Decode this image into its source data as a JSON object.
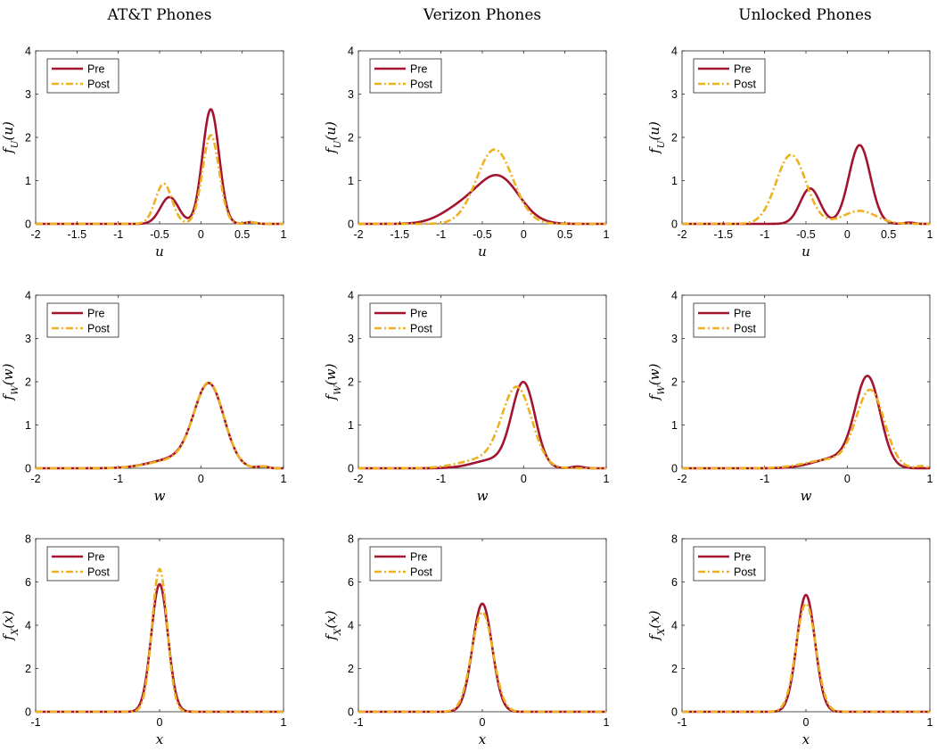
{
  "figure": {
    "column_titles": [
      "AT&T Phones",
      "Verizon Phones",
      "Unlocked Phones"
    ]
  },
  "colors": {
    "pre": "#A2142F",
    "post": "#EDB120"
  },
  "chart_data": [
    {
      "type": "line",
      "row": 0,
      "col": 0,
      "column_title": "AT&T Phones",
      "xlabel": "u",
      "ylabel": "f_U(u)",
      "xlim": [
        -2,
        1
      ],
      "ylim": [
        0,
        4
      ],
      "xticks": [
        "-2",
        "-1.5",
        "-1",
        "-0.5",
        "0",
        "0.5",
        "1"
      ],
      "yticks": [
        "0",
        "1",
        "2",
        "3",
        "4"
      ],
      "legend": {
        "position": "top-left",
        "entries": [
          "Pre",
          "Post"
        ]
      },
      "series": [
        {
          "name": "Pre",
          "style": "solid",
          "components": [
            [
              0.12,
              0.1,
              2.65
            ],
            [
              -0.38,
              0.11,
              0.62
            ]
          ],
          "bump": [
            0.6,
            0.06,
            0.04
          ]
        },
        {
          "name": "Post",
          "style": "dash-dot",
          "components": [
            [
              0.12,
              0.1,
              2.05
            ],
            [
              -0.45,
              0.1,
              0.93
            ]
          ],
          "bump": [
            0.6,
            0.06,
            0.04
          ]
        }
      ]
    },
    {
      "type": "line",
      "row": 0,
      "col": 1,
      "column_title": "Verizon Phones",
      "xlabel": "u",
      "ylabel": "f_U(u)",
      "xlim": [
        -2,
        1
      ],
      "ylim": [
        0,
        4
      ],
      "xticks": [
        "-2",
        "-1.5",
        "-1",
        "-0.5",
        "0",
        "0.5",
        "1"
      ],
      "yticks": [
        "0",
        "1",
        "2",
        "3",
        "4"
      ],
      "legend": {
        "position": "top-left",
        "entries": [
          "Pre",
          "Post"
        ]
      },
      "series": [
        {
          "name": "Pre",
          "style": "solid",
          "components": [
            [
              -0.3,
              0.25,
              1.05
            ],
            [
              -0.75,
              0.25,
              0.35
            ]
          ]
        },
        {
          "name": "Post",
          "style": "dash-dot",
          "components": [
            [
              -0.35,
              0.22,
              1.72
            ]
          ]
        }
      ]
    },
    {
      "type": "line",
      "row": 0,
      "col": 2,
      "column_title": "Unlocked Phones",
      "xlabel": "u",
      "ylabel": "f_U(u)",
      "xlim": [
        -2,
        1
      ],
      "ylim": [
        0,
        4
      ],
      "xticks": [
        "-2",
        "-1.5",
        "-1",
        "-0.5",
        "0",
        "0.5",
        "1"
      ],
      "yticks": [
        "0",
        "1",
        "2",
        "3",
        "4"
      ],
      "legend": {
        "position": "top-left",
        "entries": [
          "Pre",
          "Post"
        ]
      },
      "series": [
        {
          "name": "Pre",
          "style": "solid",
          "components": [
            [
              0.15,
              0.13,
              1.82
            ],
            [
              -0.45,
              0.12,
              0.82
            ]
          ],
          "bump": [
            0.75,
            0.06,
            0.03
          ]
        },
        {
          "name": "Post",
          "style": "dash-dot",
          "components": [
            [
              -0.68,
              0.18,
              1.6
            ],
            [
              0.15,
              0.2,
              0.3
            ]
          ]
        }
      ]
    },
    {
      "type": "line",
      "row": 1,
      "col": 0,
      "xlabel": "w",
      "ylabel": "f_W(w)",
      "xlim": [
        -2,
        1
      ],
      "ylim": [
        0,
        4
      ],
      "xticks": [
        "-2",
        "-1",
        "0",
        "1"
      ],
      "yticks": [
        "0",
        "1",
        "2",
        "3",
        "4"
      ],
      "legend": {
        "position": "top-left",
        "entries": [
          "Pre",
          "Post"
        ]
      },
      "series": [
        {
          "name": "Pre",
          "style": "solid",
          "components": [
            [
              0.1,
              0.18,
              1.88
            ],
            [
              -0.3,
              0.3,
              0.22
            ]
          ],
          "bump": [
            0.75,
            0.06,
            0.04
          ]
        },
        {
          "name": "Post",
          "style": "dash-dot",
          "components": [
            [
              0.1,
              0.18,
              1.9
            ],
            [
              -0.3,
              0.3,
              0.2
            ]
          ],
          "bump": [
            0.75,
            0.06,
            0.04
          ]
        }
      ]
    },
    {
      "type": "line",
      "row": 1,
      "col": 1,
      "xlabel": "w",
      "ylabel": "f_W(w)",
      "xlim": [
        -2,
        1
      ],
      "ylim": [
        0,
        4
      ],
      "xticks": [
        "-2",
        "-1",
        "0",
        "1"
      ],
      "yticks": [
        "0",
        "1",
        "2",
        "3",
        "4"
      ],
      "legend": {
        "position": "top-left",
        "entries": [
          "Pre",
          "Post"
        ]
      },
      "series": [
        {
          "name": "Pre",
          "style": "solid",
          "components": [
            [
              0.0,
              0.14,
              1.92
            ],
            [
              -0.35,
              0.25,
              0.2
            ]
          ],
          "bump": [
            0.65,
            0.07,
            0.04
          ]
        },
        {
          "name": "Post",
          "style": "dash-dot",
          "components": [
            [
              -0.08,
              0.18,
              1.82
            ],
            [
              -0.5,
              0.28,
              0.2
            ]
          ]
        }
      ]
    },
    {
      "type": "line",
      "row": 1,
      "col": 2,
      "xlabel": "w",
      "ylabel": "f_W(w)",
      "xlim": [
        -2,
        1
      ],
      "ylim": [
        0,
        4
      ],
      "xticks": [
        "-2",
        "-1",
        "0",
        "1"
      ],
      "yticks": [
        "0",
        "1",
        "2",
        "3",
        "4"
      ],
      "legend": {
        "position": "top-left",
        "entries": [
          "Pre",
          "Post"
        ]
      },
      "series": [
        {
          "name": "Pre",
          "style": "solid",
          "components": [
            [
              0.25,
              0.15,
              2.02
            ],
            [
              -0.1,
              0.28,
              0.25
            ]
          ]
        },
        {
          "name": "Post",
          "style": "dash-dot",
          "components": [
            [
              0.28,
              0.17,
              1.76
            ],
            [
              -0.2,
              0.3,
              0.2
            ]
          ],
          "bump": [
            0.9,
            0.06,
            0.05
          ]
        }
      ]
    },
    {
      "type": "line",
      "row": 2,
      "col": 0,
      "xlabel": "x",
      "ylabel": "f_X(x)",
      "xlim": [
        -1,
        1
      ],
      "ylim": [
        0,
        8
      ],
      "xticks": [
        "-1",
        "0",
        "1"
      ],
      "yticks": [
        "0",
        "2",
        "4",
        "6",
        "8"
      ],
      "legend": {
        "position": "top-left",
        "entries": [
          "Pre",
          "Post"
        ]
      },
      "series": [
        {
          "name": "Pre",
          "style": "solid",
          "components": [
            [
              0.0,
              0.067,
              5.9
            ]
          ]
        },
        {
          "name": "Post",
          "style": "dash-dot",
          "components": [
            [
              0.0,
              0.061,
              6.6
            ]
          ]
        }
      ]
    },
    {
      "type": "line",
      "row": 2,
      "col": 1,
      "xlabel": "x",
      "ylabel": "f_X(x)",
      "xlim": [
        -1,
        1
      ],
      "ylim": [
        0,
        8
      ],
      "xticks": [
        "-1",
        "0",
        "1"
      ],
      "yticks": [
        "0",
        "2",
        "4",
        "6",
        "8"
      ],
      "legend": {
        "position": "top-left",
        "entries": [
          "Pre",
          "Post"
        ]
      },
      "series": [
        {
          "name": "Pre",
          "style": "solid",
          "components": [
            [
              0.0,
              0.079,
              5.0
            ]
          ]
        },
        {
          "name": "Post",
          "style": "dash-dot",
          "components": [
            [
              0.0,
              0.086,
              4.6
            ]
          ]
        }
      ]
    },
    {
      "type": "line",
      "row": 2,
      "col": 2,
      "xlabel": "x",
      "ylabel": "f_X(x)",
      "xlim": [
        -1,
        1
      ],
      "ylim": [
        0,
        8
      ],
      "xticks": [
        "-1",
        "0",
        "1"
      ],
      "yticks": [
        "0",
        "2",
        "4",
        "6",
        "8"
      ],
      "legend": {
        "position": "top-left",
        "entries": [
          "Pre",
          "Post"
        ]
      },
      "series": [
        {
          "name": "Pre",
          "style": "solid",
          "components": [
            [
              0.0,
              0.073,
              5.4
            ]
          ]
        },
        {
          "name": "Post",
          "style": "dash-dot",
          "components": [
            [
              0.0,
              0.079,
              5.0
            ]
          ]
        }
      ]
    }
  ]
}
